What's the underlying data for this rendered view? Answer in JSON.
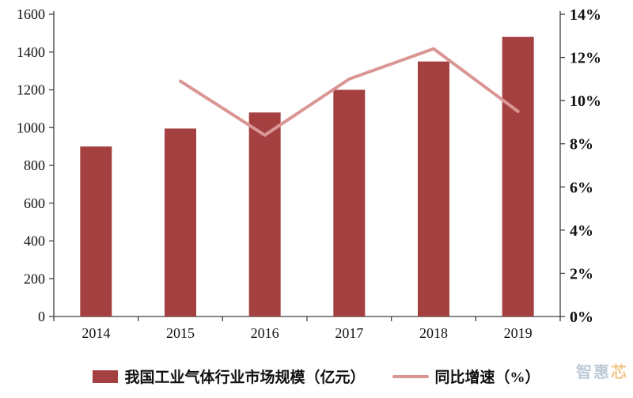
{
  "chart_data": {
    "type": "bar",
    "title": "",
    "categories": [
      "2014",
      "2015",
      "2016",
      "2017",
      "2018",
      "2019"
    ],
    "series": [
      {
        "name": "我国工业气体行业市场规模（亿元）",
        "type": "bar",
        "axis": "left",
        "color": "#A54040",
        "values": [
          900,
          995,
          1080,
          1200,
          1350,
          1480
        ]
      },
      {
        "name": "同比增速（%）",
        "type": "line",
        "axis": "right",
        "color": "#D99694",
        "values": [
          null,
          10.9,
          8.4,
          11.0,
          12.4,
          9.5
        ]
      }
    ],
    "left_axis": {
      "min": 0,
      "max": 1600,
      "step": 200
    },
    "right_axis": {
      "min": 0,
      "max": 14,
      "step": 2,
      "suffix": "%"
    },
    "grid": false,
    "legend_position": "bottom"
  },
  "legend": {
    "bar_label": "我国工业气体行业市场规模（亿元）",
    "line_label": "同比增速（%）"
  },
  "watermark": {
    "part1": "智惠",
    "part2": "芯"
  }
}
